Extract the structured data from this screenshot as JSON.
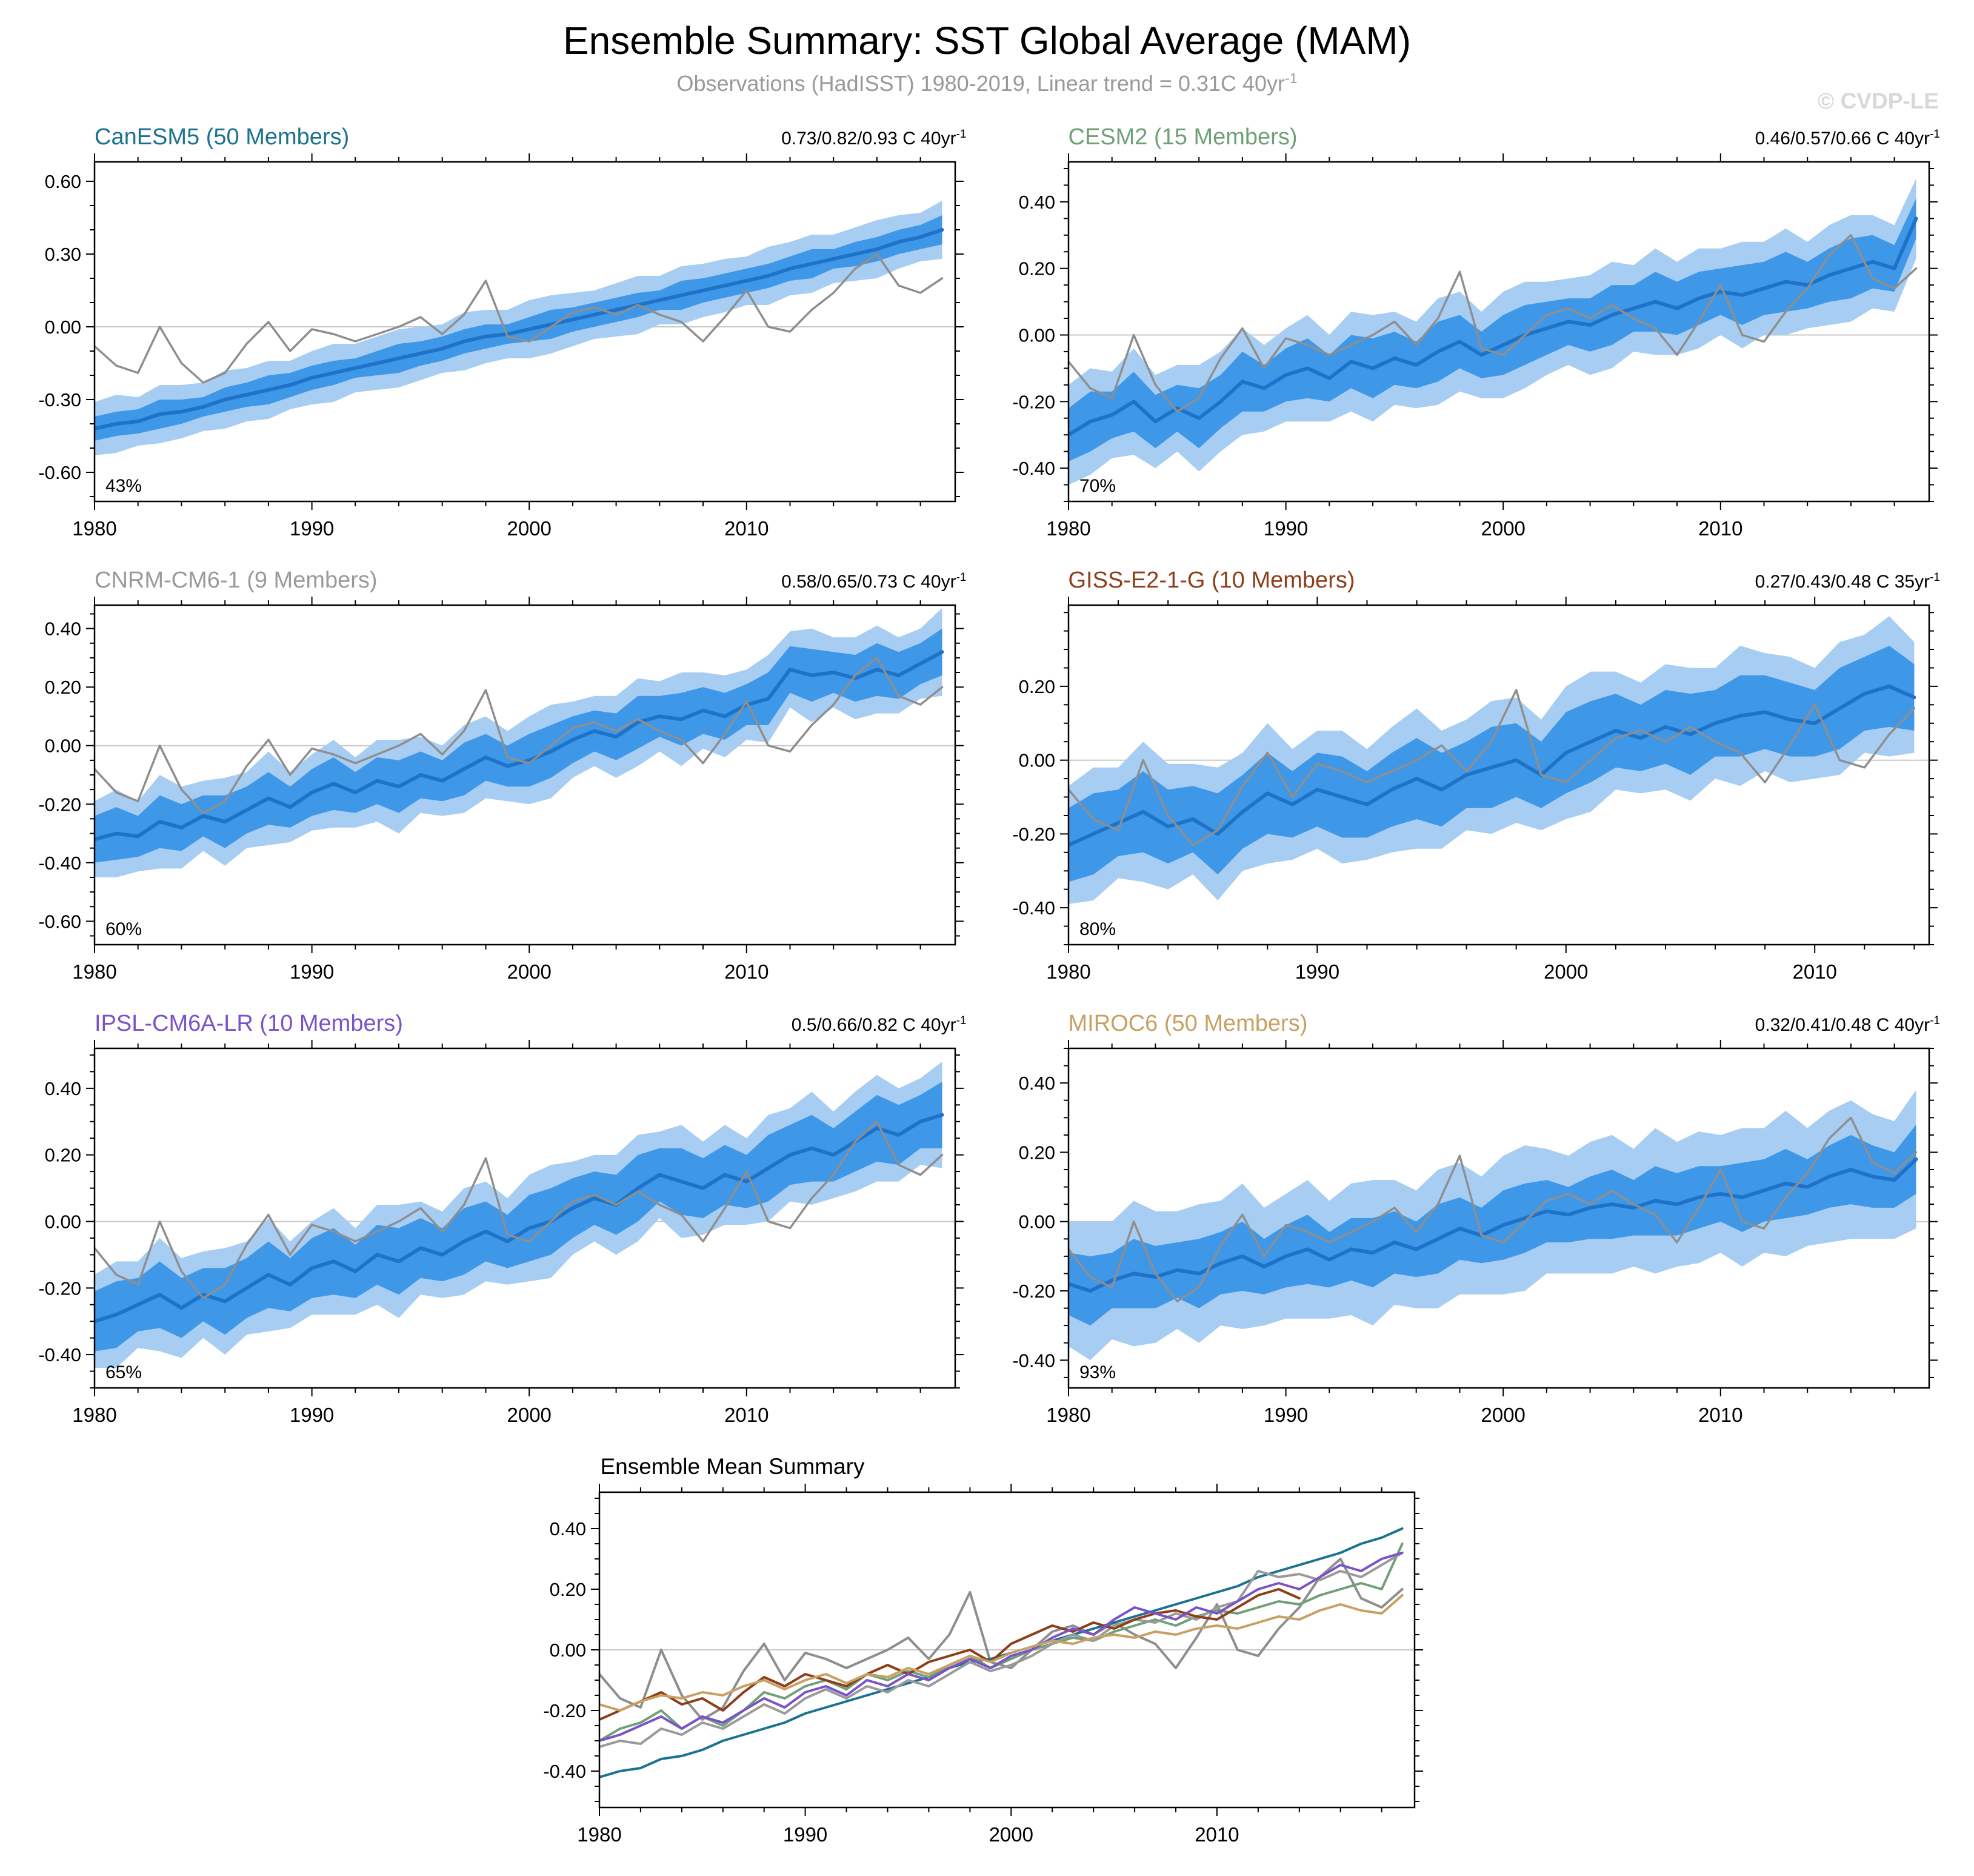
{
  "header": {
    "title": "Ensemble Summary: SST Global Average (MAM)",
    "subtitle": "Observations (HadISST) 1980-2019, Linear trend = 0.31C 40yr",
    "subtitle_sup": "-1",
    "watermark": "© CVDP-LE"
  },
  "colors": {
    "band_outer": "#A7CEF2",
    "band_inner": "#3F97E8",
    "ensemble_mean": "#1E72C8",
    "observations": "#8E8E8E",
    "zero_line": "#C9C9C9",
    "axis": "#000000",
    "subtitle": "#999999",
    "watermark": "#D8D8D8"
  },
  "observations": {
    "name": "Observations (HadISST)",
    "color": "#8E8E8E",
    "x_start": 1980,
    "values": [
      -0.08,
      -0.16,
      -0.19,
      0.0,
      -0.15,
      -0.23,
      -0.19,
      -0.07,
      0.02,
      -0.1,
      -0.01,
      -0.03,
      -0.06,
      -0.03,
      0.0,
      0.04,
      -0.03,
      0.05,
      0.19,
      -0.04,
      -0.06,
      0.0,
      0.06,
      0.08,
      0.05,
      0.09,
      0.05,
      0.02,
      -0.06,
      0.04,
      0.15,
      0.0,
      -0.02,
      0.07,
      0.14,
      0.24,
      0.3,
      0.17,
      0.14,
      0.2
    ]
  },
  "chart_data": [
    {
      "type": "area",
      "model": "CanESM5",
      "title": "CanESM5 (50 Members)",
      "title_color": "#1D7291",
      "trend_label": "0.73/0.82/0.93 C 40yr",
      "trend_sup": "-1",
      "agreement_pct": "43%",
      "x_start": 1980,
      "xlim": [
        1980,
        2019.6
      ],
      "xticks": [
        1980,
        1990,
        2000,
        2010
      ],
      "xminor": 2,
      "ylim": [
        -0.72,
        0.68
      ],
      "yticks": [
        -0.6,
        -0.3,
        0,
        0.3,
        0.6
      ],
      "yminor": 0.1,
      "mean": [
        -0.42,
        -0.4,
        -0.39,
        -0.36,
        -0.35,
        -0.33,
        -0.3,
        -0.28,
        -0.26,
        -0.24,
        -0.21,
        -0.19,
        -0.17,
        -0.15,
        -0.13,
        -0.11,
        -0.09,
        -0.06,
        -0.04,
        -0.03,
        -0.01,
        0.01,
        0.03,
        0.05,
        0.07,
        0.09,
        0.11,
        0.13,
        0.15,
        0.17,
        0.19,
        0.21,
        0.24,
        0.26,
        0.28,
        0.3,
        0.32,
        0.35,
        0.37,
        0.4
      ],
      "inner_halfwidth": [
        0.05,
        0.05,
        0.05,
        0.06,
        0.05,
        0.04,
        0.05,
        0.05,
        0.06,
        0.05,
        0.05,
        0.05,
        0.04,
        0.05,
        0.06,
        0.05,
        0.05,
        0.05,
        0.05,
        0.04,
        0.05,
        0.06,
        0.05,
        0.05,
        0.05,
        0.05,
        0.04,
        0.06,
        0.05,
        0.05,
        0.05,
        0.05,
        0.05,
        0.06,
        0.04,
        0.05,
        0.05,
        0.05,
        0.05,
        0.06
      ],
      "outer_halfwidth": [
        0.11,
        0.12,
        0.1,
        0.12,
        0.11,
        0.1,
        0.12,
        0.11,
        0.12,
        0.1,
        0.11,
        0.12,
        0.1,
        0.11,
        0.12,
        0.11,
        0.1,
        0.12,
        0.11,
        0.1,
        0.12,
        0.12,
        0.11,
        0.1,
        0.11,
        0.12,
        0.1,
        0.12,
        0.11,
        0.11,
        0.1,
        0.12,
        0.11,
        0.12,
        0.1,
        0.11,
        0.12,
        0.11,
        0.1,
        0.12
      ]
    },
    {
      "type": "area",
      "model": "CESM2",
      "title": "CESM2 (15 Members)",
      "title_color": "#6FA077",
      "trend_label": "0.46/0.57/0.66 C 40yr",
      "trend_sup": "-1",
      "agreement_pct": "70%",
      "x_start": 1980,
      "xlim": [
        1980,
        2019.6
      ],
      "xticks": [
        1980,
        1990,
        2000,
        2010
      ],
      "xminor": 2,
      "ylim": [
        -0.5,
        0.52
      ],
      "yticks": [
        -0.4,
        -0.2,
        0,
        0.2,
        0.4
      ],
      "yminor": 0.05,
      "mean": [
        -0.3,
        -0.26,
        -0.24,
        -0.2,
        -0.26,
        -0.22,
        -0.25,
        -0.2,
        -0.14,
        -0.16,
        -0.12,
        -0.1,
        -0.13,
        -0.08,
        -0.1,
        -0.07,
        -0.09,
        -0.05,
        -0.02,
        -0.06,
        -0.03,
        0.0,
        0.02,
        0.04,
        0.03,
        0.06,
        0.08,
        0.1,
        0.08,
        0.11,
        0.13,
        0.12,
        0.14,
        0.16,
        0.15,
        0.18,
        0.2,
        0.22,
        0.2,
        0.35
      ],
      "inner_halfwidth": [
        0.08,
        0.09,
        0.07,
        0.09,
        0.08,
        0.07,
        0.09,
        0.08,
        0.09,
        0.07,
        0.08,
        0.09,
        0.07,
        0.08,
        0.09,
        0.08,
        0.07,
        0.09,
        0.08,
        0.07,
        0.09,
        0.09,
        0.08,
        0.07,
        0.08,
        0.09,
        0.07,
        0.09,
        0.08,
        0.08,
        0.07,
        0.09,
        0.08,
        0.09,
        0.07,
        0.08,
        0.09,
        0.08,
        0.07,
        0.06
      ],
      "outer_halfwidth": [
        0.15,
        0.16,
        0.13,
        0.16,
        0.14,
        0.13,
        0.16,
        0.15,
        0.16,
        0.13,
        0.14,
        0.16,
        0.13,
        0.15,
        0.16,
        0.14,
        0.13,
        0.16,
        0.15,
        0.13,
        0.16,
        0.16,
        0.14,
        0.13,
        0.15,
        0.16,
        0.13,
        0.16,
        0.14,
        0.15,
        0.13,
        0.16,
        0.14,
        0.16,
        0.13,
        0.15,
        0.16,
        0.14,
        0.13,
        0.12
      ]
    },
    {
      "type": "area",
      "model": "CNRM-CM6-1",
      "title": "CNRM-CM6-1 (9 Members)",
      "title_color": "#9A9A9A",
      "trend_label": "0.58/0.65/0.73 C 40yr",
      "trend_sup": "-1",
      "agreement_pct": "60%",
      "x_start": 1980,
      "xlim": [
        1980,
        2019.6
      ],
      "xticks": [
        1980,
        1990,
        2000,
        2010
      ],
      "xminor": 2,
      "ylim": [
        -0.68,
        0.48
      ],
      "yticks": [
        -0.6,
        -0.4,
        -0.2,
        0,
        0.2,
        0.4
      ],
      "yminor": 0.05,
      "mean": [
        -0.32,
        -0.3,
        -0.31,
        -0.26,
        -0.28,
        -0.24,
        -0.26,
        -0.22,
        -0.18,
        -0.21,
        -0.16,
        -0.13,
        -0.16,
        -0.12,
        -0.14,
        -0.1,
        -0.12,
        -0.08,
        -0.04,
        -0.07,
        -0.05,
        -0.02,
        0.02,
        0.05,
        0.03,
        0.08,
        0.1,
        0.09,
        0.12,
        0.1,
        0.14,
        0.16,
        0.26,
        0.24,
        0.25,
        0.23,
        0.26,
        0.24,
        0.28,
        0.32
      ],
      "inner_halfwidth": [
        0.08,
        0.09,
        0.07,
        0.09,
        0.08,
        0.07,
        0.09,
        0.08,
        0.09,
        0.07,
        0.08,
        0.09,
        0.07,
        0.08,
        0.09,
        0.08,
        0.07,
        0.09,
        0.08,
        0.07,
        0.09,
        0.09,
        0.08,
        0.07,
        0.08,
        0.09,
        0.07,
        0.09,
        0.08,
        0.08,
        0.07,
        0.09,
        0.08,
        0.09,
        0.07,
        0.08,
        0.09,
        0.08,
        0.07,
        0.08
      ],
      "outer_halfwidth": [
        0.13,
        0.15,
        0.12,
        0.16,
        0.14,
        0.12,
        0.15,
        0.13,
        0.16,
        0.12,
        0.13,
        0.15,
        0.12,
        0.14,
        0.16,
        0.13,
        0.12,
        0.15,
        0.14,
        0.12,
        0.15,
        0.16,
        0.13,
        0.12,
        0.14,
        0.15,
        0.12,
        0.16,
        0.13,
        0.14,
        0.12,
        0.15,
        0.13,
        0.16,
        0.12,
        0.14,
        0.15,
        0.13,
        0.12,
        0.15
      ]
    },
    {
      "type": "area",
      "model": "GISS-E2-1-G",
      "title": "GISS-E2-1-G (10 Members)",
      "title_color": "#8E3D1A",
      "trend_label": "0.27/0.43/0.48 C 35yr",
      "trend_sup": "-1",
      "agreement_pct": "80%",
      "x_start": 1980,
      "xlim": [
        1980,
        2014.6
      ],
      "xticks": [
        1980,
        1990,
        2000,
        2010
      ],
      "xminor": 2,
      "ylim": [
        -0.5,
        0.42
      ],
      "yticks": [
        -0.4,
        -0.2,
        0,
        0.2
      ],
      "yminor": 0.05,
      "mean": [
        -0.23,
        -0.2,
        -0.17,
        -0.14,
        -0.18,
        -0.16,
        -0.2,
        -0.14,
        -0.09,
        -0.12,
        -0.08,
        -0.1,
        -0.12,
        -0.08,
        -0.05,
        -0.08,
        -0.04,
        -0.02,
        0.0,
        -0.04,
        0.02,
        0.05,
        0.08,
        0.06,
        0.09,
        0.07,
        0.1,
        0.12,
        0.13,
        0.11,
        0.1,
        0.14,
        0.18,
        0.2,
        0.17
      ],
      "inner_halfwidth": [
        0.1,
        0.11,
        0.09,
        0.11,
        0.1,
        0.09,
        0.11,
        0.1,
        0.11,
        0.09,
        0.1,
        0.11,
        0.09,
        0.1,
        0.11,
        0.1,
        0.09,
        0.11,
        0.1,
        0.09,
        0.11,
        0.11,
        0.1,
        0.09,
        0.1,
        0.11,
        0.09,
        0.11,
        0.1,
        0.1,
        0.09,
        0.11,
        0.1,
        0.11,
        0.09
      ],
      "outer_halfwidth": [
        0.16,
        0.18,
        0.15,
        0.19,
        0.17,
        0.15,
        0.18,
        0.16,
        0.19,
        0.15,
        0.16,
        0.18,
        0.15,
        0.17,
        0.19,
        0.16,
        0.15,
        0.18,
        0.17,
        0.15,
        0.18,
        0.19,
        0.16,
        0.15,
        0.17,
        0.18,
        0.15,
        0.19,
        0.16,
        0.17,
        0.15,
        0.18,
        0.16,
        0.19,
        0.15
      ]
    },
    {
      "type": "area",
      "model": "IPSL-CM6A-LR",
      "title": "IPSL-CM6A-LR (10 Members)",
      "title_color": "#7A52C9",
      "trend_label": "0.5/0.66/0.82 C 40yr",
      "trend_sup": "-1",
      "agreement_pct": "65%",
      "x_start": 1980,
      "xlim": [
        1980,
        2019.6
      ],
      "xticks": [
        1980,
        1990,
        2000,
        2010
      ],
      "xminor": 2,
      "ylim": [
        -0.5,
        0.52
      ],
      "yticks": [
        -0.4,
        -0.2,
        0,
        0.2,
        0.4
      ],
      "yminor": 0.05,
      "mean": [
        -0.3,
        -0.28,
        -0.25,
        -0.22,
        -0.26,
        -0.22,
        -0.24,
        -0.2,
        -0.16,
        -0.19,
        -0.14,
        -0.12,
        -0.15,
        -0.1,
        -0.12,
        -0.08,
        -0.1,
        -0.06,
        -0.03,
        -0.06,
        -0.02,
        0.0,
        0.04,
        0.07,
        0.05,
        0.1,
        0.14,
        0.12,
        0.1,
        0.14,
        0.12,
        0.16,
        0.2,
        0.22,
        0.2,
        0.24,
        0.28,
        0.26,
        0.3,
        0.32
      ],
      "inner_halfwidth": [
        0.09,
        0.1,
        0.08,
        0.1,
        0.09,
        0.08,
        0.1,
        0.09,
        0.1,
        0.08,
        0.09,
        0.1,
        0.08,
        0.09,
        0.1,
        0.09,
        0.08,
        0.1,
        0.09,
        0.08,
        0.1,
        0.1,
        0.09,
        0.08,
        0.09,
        0.1,
        0.08,
        0.1,
        0.09,
        0.09,
        0.08,
        0.1,
        0.09,
        0.1,
        0.08,
        0.09,
        0.1,
        0.09,
        0.08,
        0.1
      ],
      "outer_halfwidth": [
        0.14,
        0.16,
        0.13,
        0.17,
        0.15,
        0.13,
        0.16,
        0.14,
        0.17,
        0.13,
        0.14,
        0.16,
        0.13,
        0.15,
        0.17,
        0.14,
        0.13,
        0.16,
        0.15,
        0.13,
        0.16,
        0.17,
        0.14,
        0.13,
        0.15,
        0.16,
        0.13,
        0.17,
        0.14,
        0.15,
        0.13,
        0.16,
        0.14,
        0.17,
        0.13,
        0.15,
        0.16,
        0.14,
        0.13,
        0.16
      ]
    },
    {
      "type": "area",
      "model": "MIROC6",
      "title": "MIROC6 (50 Members)",
      "title_color": "#C8A063",
      "trend_label": "0.32/0.41/0.48 C 40yr",
      "trend_sup": "-1",
      "agreement_pct": "93%",
      "x_start": 1980,
      "xlim": [
        1980,
        2019.6
      ],
      "xticks": [
        1980,
        1990,
        2000,
        2010
      ],
      "xminor": 2,
      "ylim": [
        -0.48,
        0.5
      ],
      "yticks": [
        -0.4,
        -0.2,
        0,
        0.2,
        0.4
      ],
      "yminor": 0.05,
      "mean": [
        -0.18,
        -0.2,
        -0.17,
        -0.15,
        -0.16,
        -0.14,
        -0.15,
        -0.12,
        -0.1,
        -0.13,
        -0.1,
        -0.08,
        -0.11,
        -0.08,
        -0.09,
        -0.06,
        -0.08,
        -0.05,
        -0.02,
        -0.04,
        -0.01,
        0.01,
        0.03,
        0.02,
        0.04,
        0.05,
        0.04,
        0.06,
        0.05,
        0.07,
        0.08,
        0.07,
        0.09,
        0.11,
        0.1,
        0.13,
        0.15,
        0.13,
        0.12,
        0.18
      ],
      "inner_halfwidth": [
        0.09,
        0.1,
        0.08,
        0.1,
        0.09,
        0.08,
        0.1,
        0.09,
        0.1,
        0.08,
        0.09,
        0.1,
        0.08,
        0.09,
        0.1,
        0.09,
        0.08,
        0.1,
        0.09,
        0.08,
        0.1,
        0.1,
        0.09,
        0.08,
        0.09,
        0.1,
        0.08,
        0.1,
        0.09,
        0.09,
        0.08,
        0.1,
        0.09,
        0.1,
        0.08,
        0.09,
        0.1,
        0.09,
        0.08,
        0.1
      ],
      "outer_halfwidth": [
        0.18,
        0.2,
        0.17,
        0.21,
        0.19,
        0.17,
        0.2,
        0.18,
        0.21,
        0.17,
        0.18,
        0.2,
        0.17,
        0.19,
        0.21,
        0.18,
        0.17,
        0.2,
        0.19,
        0.17,
        0.2,
        0.21,
        0.18,
        0.17,
        0.19,
        0.2,
        0.17,
        0.21,
        0.18,
        0.19,
        0.17,
        0.2,
        0.18,
        0.21,
        0.17,
        0.19,
        0.2,
        0.18,
        0.17,
        0.2
      ]
    },
    {
      "type": "line",
      "title": "Ensemble Mean Summary",
      "xlim": [
        1980,
        2019.6
      ],
      "xticks": [
        1980,
        1990,
        2000,
        2010
      ],
      "xminor": 2,
      "ylim": [
        -0.52,
        0.52
      ],
      "yticks": [
        -0.4,
        -0.2,
        0,
        0.2,
        0.4
      ],
      "yminor": 0.05,
      "series": [
        "Observations (HadISST)",
        "CanESM5",
        "CESM2",
        "CNRM-CM6-1",
        "GISS-E2-1-G",
        "IPSL-CM6A-LR",
        "MIROC6"
      ]
    }
  ]
}
